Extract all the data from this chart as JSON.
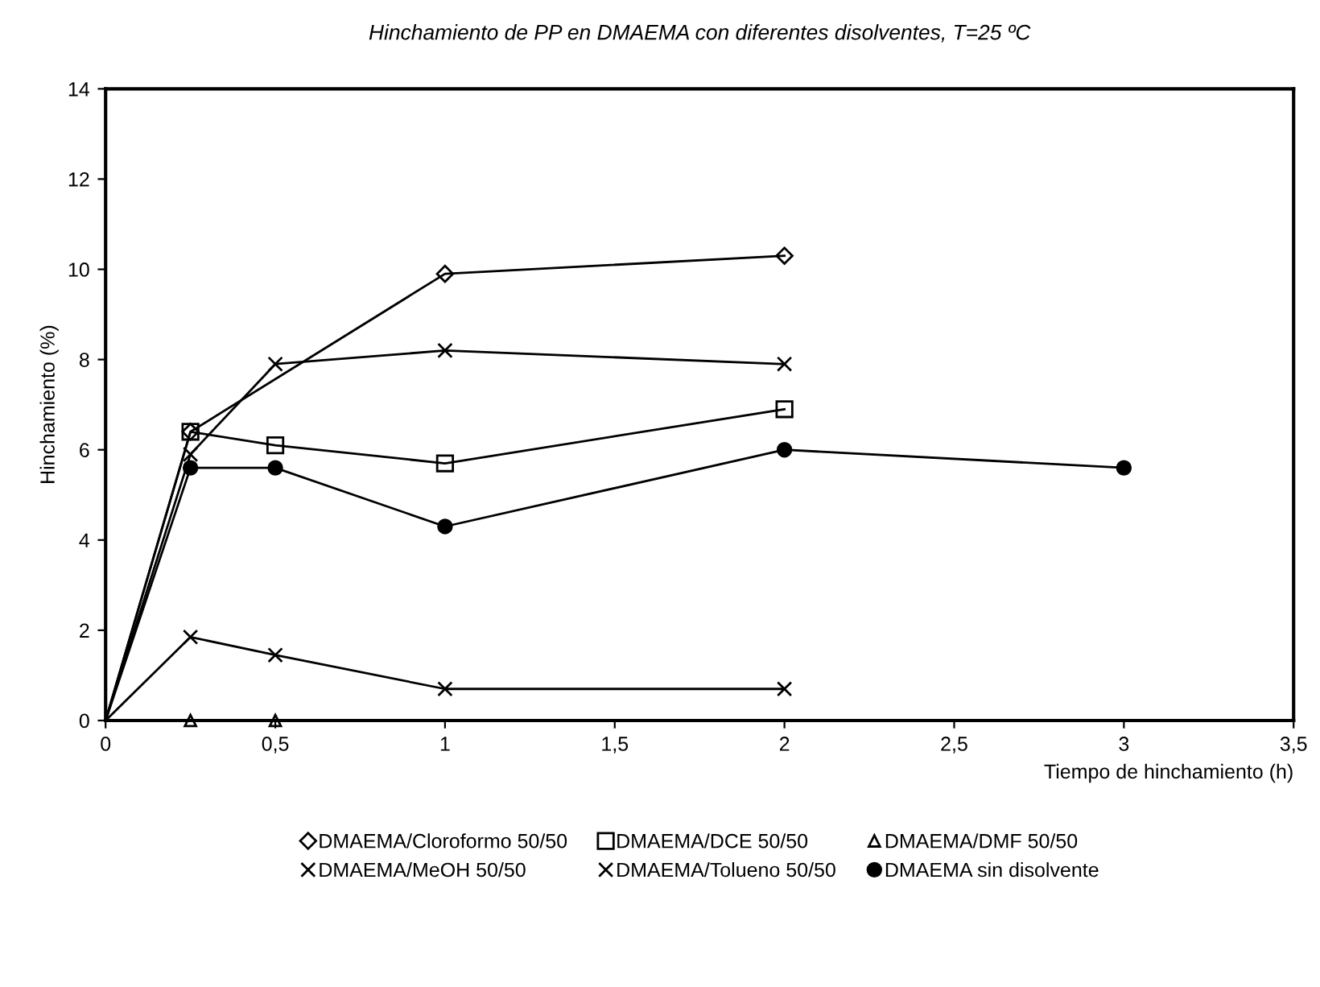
{
  "chart_data": {
    "type": "line",
    "title": "Hinchamiento de PP en DMAEMA con diferentes disolventes, T=25 ºC",
    "xlabel": "Tiempo de hinchamiento (h)",
    "ylabel": "Hinchamiento (%)",
    "xlim": [
      0,
      3.5
    ],
    "xticks": [
      0,
      {
        "value": 0.5,
        "label": "0,5"
      },
      1,
      {
        "value": 1.5,
        "label": "1,5"
      },
      2,
      {
        "value": 2.5,
        "label": "2,5"
      },
      3,
      {
        "value": 3.5,
        "label": "3,5"
      }
    ],
    "ylim": [
      0,
      14
    ],
    "yticks": [
      0,
      2,
      4,
      6,
      8,
      10,
      12,
      14
    ],
    "grid": false,
    "legend": "bottom",
    "line_style": "solid",
    "series": [
      {
        "name": "DMAEMA/Cloroformo 50/50",
        "color": "#000000",
        "marker": "diamond",
        "x": [
          0,
          0.25,
          1,
          2
        ],
        "values": [
          0,
          6.4,
          9.9,
          10.3
        ]
      },
      {
        "name": "DMAEMA/DCE 50/50",
        "color": "#000000",
        "marker": "square",
        "x": [
          0,
          0.25,
          0.5,
          1,
          2
        ],
        "values": [
          0,
          6.4,
          6.1,
          5.7,
          6.9
        ]
      },
      {
        "name": "DMAEMA/DMF 50/50",
        "type": "scatter",
        "color": "#000000",
        "marker": "triangle",
        "x": [
          0.25,
          0.5
        ],
        "values": [
          0,
          0
        ]
      },
      {
        "name": "DMAEMA/MeOH 50/50",
        "color": "#000000",
        "marker": "cross",
        "x": [
          0,
          0.25,
          0.5,
          1,
          2
        ],
        "values": [
          0,
          5.9,
          7.9,
          8.2,
          7.9
        ]
      },
      {
        "name": "DMAEMA/Tolueno 50/50",
        "color": "#000000",
        "marker": "cross",
        "x": [
          0,
          0.25,
          0.5,
          1,
          2
        ],
        "values": [
          0,
          1.85,
          1.45,
          0.7,
          0.7
        ]
      },
      {
        "name": "DMAEMA sin disolvente",
        "color": "#000000",
        "marker": "circle",
        "x": [
          0,
          0.25,
          0.5,
          1,
          2,
          3
        ],
        "values": [
          0,
          5.6,
          5.6,
          4.3,
          6.0,
          5.6
        ]
      }
    ]
  }
}
